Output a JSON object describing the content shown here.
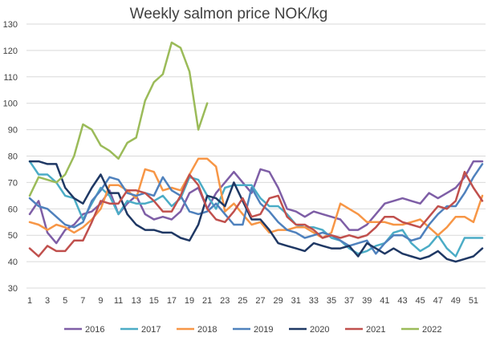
{
  "chart_data": {
    "type": "line",
    "title": "Weekly salmon price NOK/kg",
    "xlabel": "",
    "ylabel": "",
    "ylim": [
      30,
      130
    ],
    "yticks": [
      30,
      40,
      50,
      60,
      70,
      80,
      90,
      100,
      110,
      120,
      130
    ],
    "xlim": [
      1,
      52
    ],
    "xticks": [
      1,
      3,
      5,
      7,
      9,
      11,
      13,
      15,
      17,
      19,
      21,
      23,
      25,
      27,
      29,
      31,
      33,
      35,
      37,
      39,
      41,
      43,
      45,
      47,
      49,
      51
    ],
    "grid": true,
    "legend_position": "bottom",
    "series": [
      {
        "name": "2016",
        "color": "#7e5ea6",
        "values": [
          58,
          63,
          51,
          47,
          52,
          54,
          58,
          59,
          62,
          67,
          58,
          62,
          65,
          58,
          56,
          57,
          56,
          59,
          66,
          68,
          60,
          66,
          70,
          74,
          70,
          66,
          75,
          74,
          68,
          60,
          59,
          57,
          59,
          58,
          57,
          56,
          52,
          52,
          54,
          58,
          62,
          63,
          64,
          63,
          62,
          66,
          64,
          66,
          68,
          72,
          78,
          78
        ]
      },
      {
        "name": "2017",
        "color": "#4bacc6",
        "values": [
          78,
          73,
          73,
          70,
          65,
          64,
          56,
          62,
          68,
          65,
          58,
          63,
          62,
          62,
          63,
          65,
          61,
          64,
          72,
          71,
          65,
          60,
          68,
          69,
          69,
          69,
          64,
          61,
          61,
          58,
          54,
          53,
          53,
          52,
          49,
          48,
          45,
          43,
          44,
          46,
          47,
          51,
          52,
          47,
          44,
          46,
          50,
          45,
          42,
          49,
          49,
          49
        ]
      },
      {
        "name": "2018",
        "color": "#f79646",
        "values": [
          55,
          54,
          52,
          54,
          53,
          51,
          53,
          56,
          60,
          69,
          69,
          67,
          64,
          75,
          74,
          67,
          68,
          67,
          73,
          79,
          79,
          76,
          59,
          62,
          58,
          54,
          55,
          51,
          52,
          52,
          53,
          53,
          51,
          49,
          51,
          62,
          60,
          58,
          55,
          55,
          55,
          54,
          54,
          55,
          56,
          53,
          50,
          53,
          57,
          57,
          55,
          65
        ]
      },
      {
        "name": "2019",
        "color": "#4f81bd",
        "values": [
          64,
          61,
          60,
          57,
          54,
          53,
          55,
          63,
          67,
          72,
          71,
          66,
          65,
          66,
          65,
          72,
          67,
          65,
          59,
          58,
          59,
          62,
          58,
          54,
          54,
          68,
          62,
          59,
          55,
          52,
          51,
          49,
          50,
          51,
          50,
          48,
          46,
          47,
          48,
          43,
          47,
          50,
          50,
          48,
          49,
          54,
          58,
          61,
          61,
          66,
          72,
          77
        ]
      },
      {
        "name": "2020",
        "color": "#1f3864",
        "values": [
          78,
          78,
          77,
          77,
          68,
          64,
          62,
          68,
          73,
          66,
          66,
          58,
          54,
          52,
          52,
          51,
          51,
          49,
          48,
          54,
          65,
          64,
          61,
          70,
          63,
          56,
          56,
          52,
          47,
          46,
          45,
          44,
          47,
          46,
          45,
          45,
          46,
          42,
          47,
          45,
          43,
          45,
          43,
          42,
          41,
          42,
          44,
          41,
          40,
          41,
          42,
          45
        ]
      },
      {
        "name": "2021",
        "color": "#c0504d",
        "values": [
          45,
          42,
          46,
          44,
          44,
          48,
          48,
          55,
          63,
          62,
          62,
          67,
          67,
          66,
          63,
          59,
          59,
          65,
          73,
          69,
          60,
          56,
          55,
          59,
          64,
          57,
          58,
          64,
          65,
          57,
          54,
          54,
          52,
          49,
          50,
          49,
          50,
          49,
          50,
          53,
          57,
          57,
          55,
          54,
          53,
          57,
          61,
          60,
          63,
          74,
          68,
          63
        ]
      },
      {
        "name": "2022",
        "color": "#9bbb59",
        "values": [
          65,
          72,
          71,
          70,
          73,
          80,
          92,
          90,
          84,
          82,
          79,
          85,
          87,
          101,
          108,
          111,
          123,
          121,
          112,
          90,
          100
        ]
      }
    ]
  }
}
